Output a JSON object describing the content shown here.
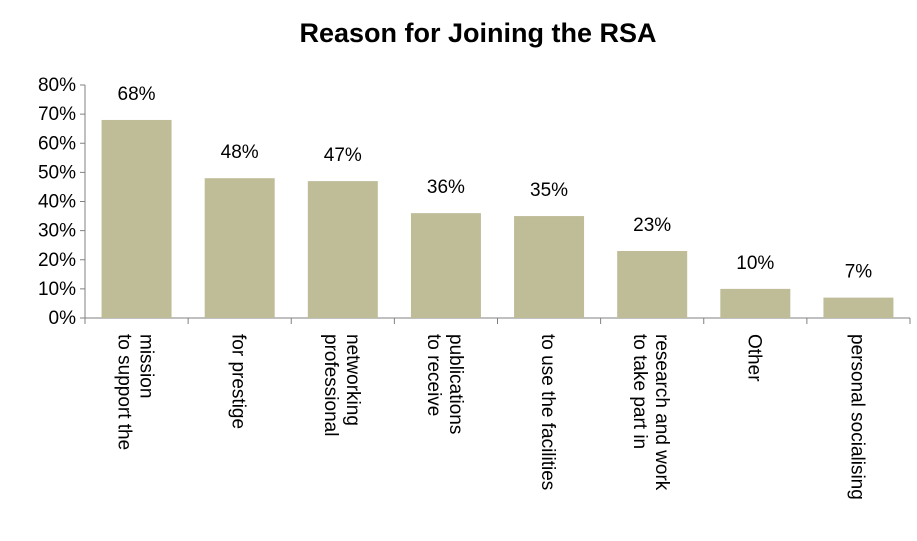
{
  "chart_data": {
    "type": "bar",
    "title": "Reason for Joining the RSA",
    "categories": [
      [
        "to support the",
        "mission"
      ],
      [
        "for prestige"
      ],
      [
        "professional",
        "networking"
      ],
      [
        "to receive",
        "publications"
      ],
      [
        "to use the facilities"
      ],
      [
        "to take part in",
        "research and work"
      ],
      [
        "Other"
      ],
      [
        "personal socialising"
      ]
    ],
    "values": [
      68,
      48,
      47,
      36,
      35,
      23,
      10,
      7
    ],
    "data_labels": [
      "68%",
      "48%",
      "47%",
      "36%",
      "35%",
      "23%",
      "10%",
      "7%"
    ],
    "xlabel": "",
    "ylabel": "",
    "ylim": [
      0,
      80
    ],
    "yticks": [
      "0%",
      "10%",
      "20%",
      "30%",
      "40%",
      "50%",
      "60%",
      "70%",
      "80%"
    ],
    "grid": false,
    "legend": "none",
    "bar_color": "#bfbc98"
  }
}
